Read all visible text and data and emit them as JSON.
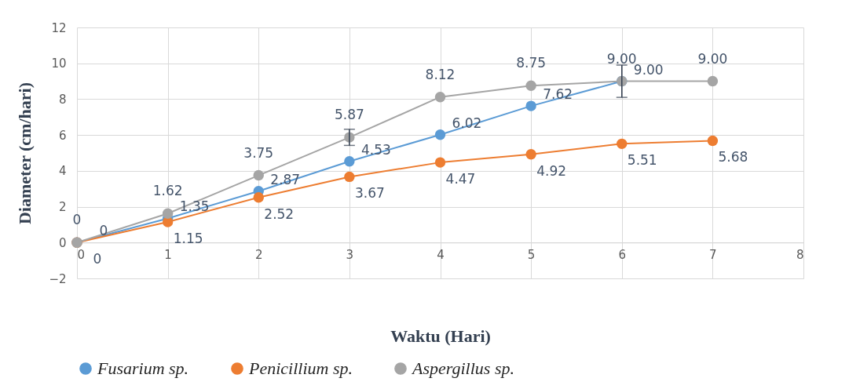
{
  "chart_data": {
    "type": "line",
    "xlabel": "Waktu (Hari)",
    "ylabel": "Diameter (cm/hari)",
    "x": [
      0,
      1,
      2,
      3,
      4,
      5,
      6,
      7
    ],
    "series": [
      {
        "name": "Fusarium sp.",
        "color": "#5b9bd5",
        "values": [
          0,
          1.35,
          2.87,
          4.53,
          6.02,
          7.62,
          9.0,
          null
        ],
        "value_labels": [
          "0",
          "1.35",
          "2.87",
          "4.53",
          "6.02",
          "7.62",
          "9.00",
          null
        ]
      },
      {
        "name": "Penicillium sp.",
        "color": "#ed7d31",
        "values": [
          0,
          1.15,
          2.52,
          3.67,
          4.47,
          4.92,
          5.51,
          5.68
        ],
        "value_labels": [
          "0",
          "1.15",
          "2.52",
          "3.67",
          "4.47",
          "4.92",
          "5.51",
          "5.68"
        ]
      },
      {
        "name": "Aspergillus sp.",
        "color": "#a5a5a5",
        "values": [
          0,
          1.62,
          3.75,
          5.87,
          8.12,
          8.75,
          9.0,
          9.0
        ],
        "value_labels": [
          "0",
          "1.62",
          "3.75",
          "5.87",
          "8.12",
          "8.75",
          "9.00",
          "9.00"
        ],
        "errors": [
          null,
          null,
          null,
          0.45,
          null,
          null,
          0.9,
          null
        ]
      }
    ],
    "xlim": [
      0,
      8
    ],
    "xticks": [
      0,
      1,
      2,
      3,
      4,
      5,
      6,
      7,
      8
    ],
    "ylim": [
      -2,
      12
    ],
    "yticks": [
      -2,
      0,
      2,
      4,
      6,
      8,
      10,
      12
    ],
    "grid": true,
    "legend": "bottom",
    "marker": "circle",
    "line_style": "solid"
  }
}
